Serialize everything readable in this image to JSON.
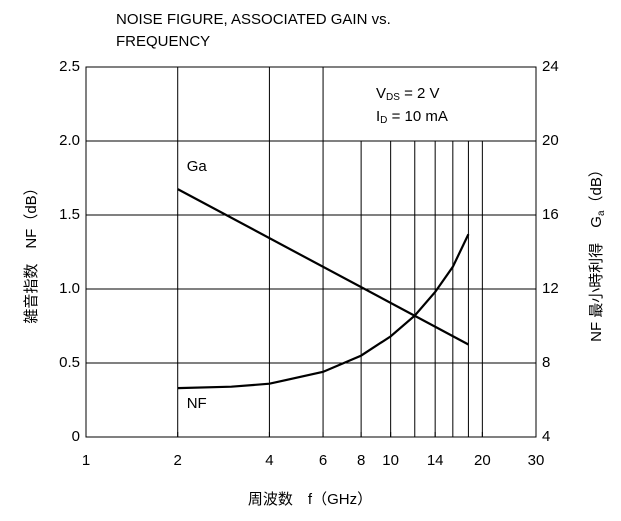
{
  "chart_data": {
    "type": "line",
    "title": [
      "NOISE FIGURE, ASSOCIATED GAIN vs.",
      "FREQUENCY"
    ],
    "x_label": "周波数　f（GHz）",
    "y_label": "雑音指数　NF（dB）",
    "y2_label": [
      "NF 最小時利得　G",
      "a",
      "（dB）"
    ],
    "annotation": [
      [
        "V",
        "DS",
        " = 2 V"
      ],
      [
        "I",
        "D",
        " = 10 mA"
      ]
    ],
    "xlog": true,
    "xlim": [
      1,
      30
    ],
    "xticks": [
      1,
      2,
      4,
      6,
      8,
      10,
      14,
      20,
      30
    ],
    "xgrid_full": [
      2,
      4,
      6
    ],
    "xgrid_partial": [
      8,
      10,
      12,
      14,
      16,
      18,
      20
    ],
    "xgrid_partial_top": 2.0,
    "ylim": [
      0,
      2.5
    ],
    "yticks": [
      0,
      0.5,
      {
        "value": 1,
        "label": "1.0"
      },
      1.5,
      {
        "value": 2,
        "label": "2.0"
      },
      2.5
    ],
    "y2lim": [
      4,
      24
    ],
    "y2ticks": [
      4,
      8,
      12,
      16,
      20,
      24
    ],
    "grid": true,
    "series": [
      {
        "name": "Ga",
        "color": "#000000",
        "axis": "y2",
        "x": [
          2,
          18
        ],
        "values": [
          17.4,
          9.0
        ]
      },
      {
        "name": "NF",
        "color": "#000000",
        "x": [
          2,
          3,
          4,
          6,
          8,
          10,
          12,
          14,
          16,
          18
        ],
        "values": [
          0.33,
          0.34,
          0.36,
          0.44,
          0.55,
          0.68,
          0.82,
          0.98,
          1.15,
          1.37
        ]
      }
    ]
  }
}
